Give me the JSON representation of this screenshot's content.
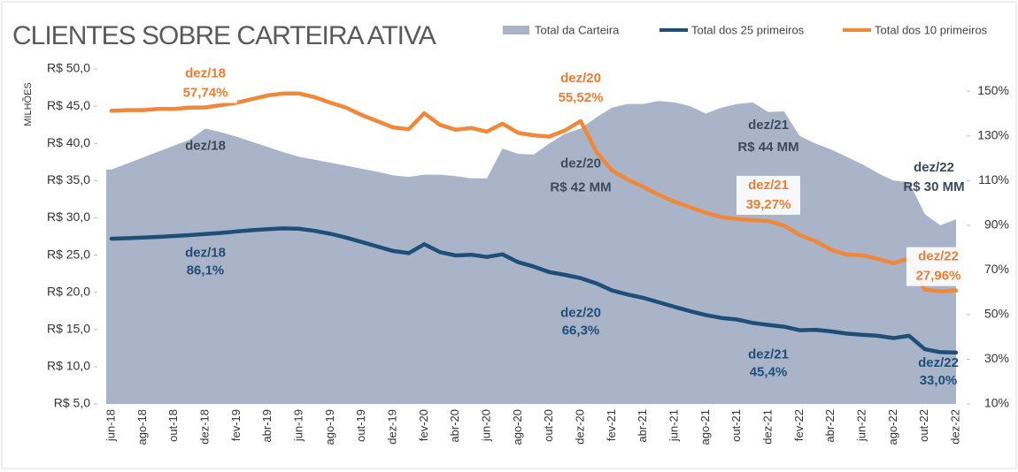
{
  "chart_data": {
    "type": "line",
    "title": "CLIENTES SOBRE CARTEIRA ATIVA",
    "ylabel": "MILHÕES",
    "categories": [
      "jun-18",
      null,
      "ago-18",
      null,
      "out-18",
      null,
      "dez-18",
      null,
      "fev-19",
      null,
      "abr-19",
      null,
      "jun-19",
      null,
      "ago-19",
      null,
      "out-19",
      null,
      "dez-19",
      null,
      "fev-20",
      null,
      "abr-20",
      null,
      "jun-20",
      null,
      "ago-20",
      null,
      "out-20",
      null,
      "dez-20",
      null,
      "fev-21",
      null,
      "abr-21",
      null,
      "jun-21",
      null,
      "ago-21",
      null,
      "out-21",
      null,
      "dez-21",
      null,
      "fev-22",
      null,
      "abr-22",
      null,
      "jun-22",
      null,
      "ago-22",
      null,
      "out-22",
      null,
      "dez-22"
    ],
    "ylim": [
      5,
      50
    ],
    "yticks": [
      {
        "value": 5,
        "label": "R$ 5,0"
      },
      {
        "value": 10,
        "label": "R$ 10,0"
      },
      {
        "value": 15,
        "label": "R$ 15,0"
      },
      {
        "value": 20,
        "label": "R$ 20,0"
      },
      {
        "value": 25,
        "label": "R$ 25,0"
      },
      {
        "value": 30,
        "label": "R$ 30,0"
      },
      {
        "value": 35,
        "label": "R$ 35,0"
      },
      {
        "value": 40,
        "label": "R$ 40,0"
      },
      {
        "value": 45,
        "label": "R$ 45,0"
      },
      {
        "value": 50,
        "label": "R$ 50,0"
      }
    ],
    "y2lim": [
      10,
      160
    ],
    "y2ticks": [
      {
        "value": 10,
        "label": "10%"
      },
      {
        "value": 30,
        "label": "30%"
      },
      {
        "value": 50,
        "label": "50%"
      },
      {
        "value": 70,
        "label": "70%"
      },
      {
        "value": 90,
        "label": "90%"
      },
      {
        "value": 110,
        "label": "110%"
      },
      {
        "value": 130,
        "label": "130%"
      },
      {
        "value": 150,
        "label": "150%"
      }
    ],
    "y3lim": [
      9.5,
      64
    ],
    "series": [
      {
        "name": "Total da Carteira",
        "type": "area",
        "color": "#a9b4c8",
        "label_color": "#3b4a5e",
        "values": [
          36.5,
          37.3,
          38.1,
          38.9,
          39.7,
          40.5,
          42.0,
          41.5,
          40.9,
          40.2,
          39.5,
          38.8,
          38.2,
          37.8,
          37.4,
          37.0,
          36.6,
          36.2,
          35.7,
          35.5,
          35.8,
          35.8,
          35.6,
          35.3,
          35.3,
          39.3,
          38.6,
          38.5,
          40.0,
          41.3,
          42.0,
          43.5,
          44.8,
          45.3,
          45.3,
          45.7,
          45.5,
          45.0,
          44.0,
          44.8,
          45.3,
          45.5,
          44.2,
          44.3,
          41.0,
          40.0,
          39.2,
          38.2,
          37.2,
          36.0,
          35.0,
          34.8,
          30.5,
          29.0,
          29.8
        ],
        "date_labels": [
          null,
          null,
          null,
          null,
          null,
          null,
          "dez/18",
          null,
          null,
          null,
          null,
          null,
          null,
          null,
          null,
          null,
          null,
          null,
          null,
          null,
          null,
          null,
          null,
          null,
          null,
          null,
          null,
          null,
          null,
          null,
          "dez/20",
          null,
          null,
          null,
          null,
          null,
          null,
          null,
          null,
          null,
          null,
          null,
          "dez/21",
          null,
          null,
          null,
          null,
          null,
          null,
          null,
          null,
          null,
          null,
          null,
          "dez/22"
        ],
        "value_labels": [
          null,
          null,
          null,
          null,
          null,
          null,
          null,
          null,
          null,
          null,
          null,
          null,
          null,
          null,
          null,
          null,
          null,
          null,
          null,
          null,
          null,
          null,
          null,
          null,
          null,
          null,
          null,
          null,
          null,
          null,
          "R$ 42 MM",
          null,
          null,
          null,
          null,
          null,
          null,
          null,
          null,
          null,
          null,
          null,
          "R$ 44 MM",
          null,
          null,
          null,
          null,
          null,
          null,
          null,
          null,
          null,
          null,
          null,
          "R$ 30 MM"
        ]
      },
      {
        "name": "Total dos 25 primeiros",
        "type": "line",
        "axis": "y2",
        "color": "#1f4e79",
        "label_color": "#1f4e79",
        "values": [
          84.0,
          84.2,
          84.5,
          84.8,
          85.2,
          85.6,
          86.1,
          86.6,
          87.2,
          87.8,
          88.3,
          88.6,
          88.4,
          87.5,
          86.2,
          84.5,
          82.5,
          80.5,
          78.5,
          77.5,
          81.5,
          78,
          76.5,
          76.8,
          75.8,
          77,
          73.5,
          71.5,
          69,
          67.8,
          66.3,
          64,
          60.8,
          59,
          57.5,
          55.5,
          53.5,
          51.5,
          49.8,
          48.5,
          47.8,
          46.3,
          45.4,
          44.6,
          43,
          43.2,
          42.5,
          41.5,
          41,
          40.5,
          39.5,
          40.5,
          34.5,
          33.2,
          33.0
        ],
        "date_labels": [
          null,
          null,
          null,
          null,
          null,
          null,
          "dez/18",
          null,
          null,
          null,
          null,
          null,
          null,
          null,
          null,
          null,
          null,
          null,
          null,
          null,
          null,
          null,
          null,
          null,
          null,
          null,
          null,
          null,
          null,
          null,
          "dez/20",
          null,
          null,
          null,
          null,
          null,
          null,
          null,
          null,
          null,
          null,
          null,
          "dez/21",
          null,
          null,
          null,
          null,
          null,
          null,
          null,
          null,
          null,
          null,
          null,
          "dez/22"
        ],
        "value_labels": [
          null,
          null,
          null,
          null,
          null,
          null,
          "86,1%",
          null,
          null,
          null,
          null,
          null,
          null,
          null,
          null,
          null,
          null,
          null,
          null,
          null,
          null,
          null,
          null,
          null,
          null,
          null,
          null,
          null,
          null,
          null,
          "66,3%",
          null,
          null,
          null,
          null,
          null,
          null,
          null,
          null,
          null,
          null,
          null,
          "45,4%",
          null,
          null,
          null,
          null,
          null,
          null,
          null,
          null,
          null,
          null,
          null,
          "33,0%"
        ]
      },
      {
        "name": "Total dos 10 primeiros",
        "type": "line",
        "axis": "y3",
        "color": "#f0883a",
        "label_color": "#ed7d31",
        "values": [
          57.2,
          57.3,
          57.3,
          57.5,
          57.5,
          57.7,
          57.74,
          58.1,
          58.5,
          59.1,
          59.7,
          60.0,
          60.0,
          59.4,
          58.5,
          57.7,
          56.5,
          55.5,
          54.5,
          54.2,
          56.8,
          54.9,
          54.1,
          54.4,
          53.8,
          55.1,
          53.6,
          53.2,
          53.0,
          54.0,
          55.52,
          50.5,
          47.5,
          46.0,
          44.8,
          43.5,
          42.4,
          41.5,
          40.6,
          39.9,
          39.6,
          39.4,
          39.27,
          38.5,
          37.0,
          36.0,
          34.6,
          33.8,
          33.7,
          33.1,
          32.4,
          33.2,
          28.1,
          27.8,
          27.96
        ],
        "date_labels": [
          null,
          null,
          null,
          null,
          null,
          null,
          "dez/18",
          null,
          null,
          null,
          null,
          null,
          null,
          null,
          null,
          null,
          null,
          null,
          null,
          null,
          null,
          null,
          null,
          null,
          null,
          null,
          null,
          null,
          null,
          null,
          "dez/20",
          null,
          null,
          null,
          null,
          null,
          null,
          null,
          null,
          null,
          null,
          null,
          "dez/21",
          null,
          null,
          null,
          null,
          null,
          null,
          null,
          null,
          null,
          null,
          null,
          "dez/22"
        ],
        "value_labels": [
          null,
          null,
          null,
          null,
          null,
          null,
          "57,74%",
          null,
          null,
          null,
          null,
          null,
          null,
          null,
          null,
          null,
          null,
          null,
          null,
          null,
          null,
          null,
          null,
          null,
          null,
          null,
          null,
          null,
          null,
          null,
          "55,52%",
          null,
          null,
          null,
          null,
          null,
          null,
          null,
          null,
          null,
          null,
          null,
          "39,27%",
          null,
          null,
          null,
          null,
          null,
          null,
          null,
          null,
          null,
          null,
          null,
          "27,96%"
        ]
      }
    ]
  }
}
